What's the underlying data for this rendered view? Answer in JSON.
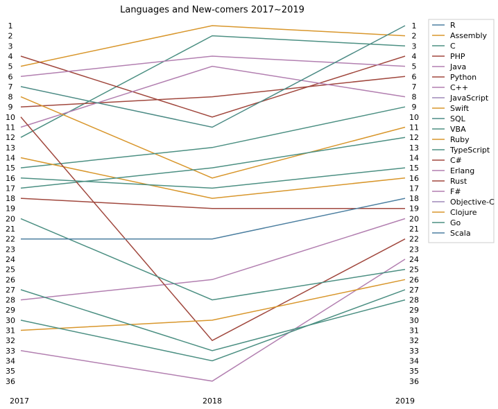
{
  "chart_data": {
    "type": "line",
    "title": "Languages and New-comers 2017~2019",
    "x": [
      "2017",
      "2018",
      "2019"
    ],
    "ylim": [
      1,
      36
    ],
    "y_inverted": true,
    "y_ticks_left": [
      "1",
      "2",
      "3",
      "4",
      "5",
      "6",
      "7",
      "8",
      "9",
      "10",
      "11",
      "12",
      "13",
      "14",
      "15",
      "16",
      "17",
      "18",
      "19",
      "20",
      "21",
      "22",
      "23",
      "24",
      "25",
      "26",
      "27",
      "28",
      "29",
      "30",
      "31",
      "32",
      "33",
      "34",
      "35",
      "36"
    ],
    "y_ticks_right": [
      "1",
      "2",
      "3",
      "4",
      "5",
      "6",
      "7",
      "8",
      "9",
      "10",
      "11",
      "12",
      "13",
      "14",
      "15",
      "16",
      "17",
      "18",
      "19",
      "20",
      "21",
      "22",
      "23",
      "24",
      "25",
      "26",
      "27",
      "28",
      "29",
      "30",
      "31",
      "32",
      "33",
      "34",
      "35",
      "36"
    ],
    "legend_position": "top-right",
    "grid": false,
    "series": [
      {
        "name": "R",
        "color": "#4c7fa0",
        "values": [
          null,
          null,
          null
        ]
      },
      {
        "name": "Assembly",
        "color": "#d8962b",
        "values": [
          5,
          1,
          2
        ]
      },
      {
        "name": "C",
        "color": "#4b8f82",
        "values": [
          12,
          2,
          3
        ]
      },
      {
        "name": "PHP",
        "color": "#a0473d",
        "values": [
          4,
          10,
          4
        ]
      },
      {
        "name": "Java",
        "color": "#b27fb0",
        "values": [
          6,
          4,
          5
        ]
      },
      {
        "name": "Python",
        "color": "#a0473d",
        "values": [
          9,
          8,
          6
        ]
      },
      {
        "name": "C++",
        "color": "#b27fb0",
        "values": [
          11,
          5,
          8
        ]
      },
      {
        "name": "JavaScript",
        "color": "#9d88b8",
        "values": [
          null,
          null,
          null
        ]
      },
      {
        "name": "Swift",
        "color": "#d8962b",
        "values": [
          8,
          16,
          11
        ]
      },
      {
        "name": "SQL",
        "color": "#4c8b85",
        "values": [
          7,
          11,
          1
        ]
      },
      {
        "name": "VBA",
        "color": "#4b8f82",
        "values": [
          15,
          13,
          9
        ]
      },
      {
        "name": "Ruby",
        "color": "#d8962b",
        "values": [
          14,
          18,
          16
        ]
      },
      {
        "name": "TypeScript",
        "color": "#4b8f82",
        "values": [
          17,
          15,
          12
        ]
      },
      {
        "name": "C#",
        "color": "#a0473d",
        "values": [
          18,
          19,
          19
        ]
      },
      {
        "name": "Erlang",
        "color": "#b27fb0",
        "values": [
          28,
          26,
          20
        ]
      },
      {
        "name": "Rust",
        "color": "#a0473d",
        "values": [
          10,
          32,
          22
        ]
      },
      {
        "name": "F#",
        "color": "#b27fb0",
        "values": [
          33,
          36,
          24
        ]
      },
      {
        "name": "Objective-C",
        "color": "#9d88b8",
        "values": [
          null,
          null,
          null
        ]
      },
      {
        "name": "Clojure",
        "color": "#d8962b",
        "values": [
          31,
          30,
          26
        ]
      },
      {
        "name": "Go",
        "color": "#4b8f82",
        "values": [
          20,
          28,
          25
        ]
      },
      {
        "name": "Scala",
        "color": "#4c7fa0",
        "values": [
          22,
          22,
          18
        ]
      },
      {
        "name": "",
        "color": "#4b8f82",
        "values": [
          16,
          17,
          15
        ]
      },
      {
        "name": "",
        "color": "#4b8f82",
        "values": [
          27,
          33,
          28
        ]
      },
      {
        "name": "",
        "color": "#4b8f82",
        "values": [
          30,
          34,
          27
        ]
      }
    ]
  }
}
